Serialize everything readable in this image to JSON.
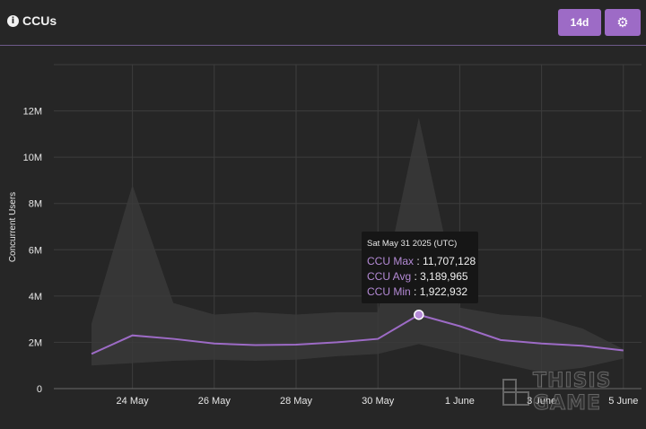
{
  "header": {
    "title": "CCUs",
    "info_icon": "info-icon",
    "range_label": "14d",
    "settings_icon": "gear-icon",
    "accent_color": "#9d6bc6"
  },
  "chart_data": {
    "type": "line",
    "ylabel": "Concurrent Users",
    "ylim": [
      0,
      14000000
    ],
    "y_ticks": [
      "0",
      "2M",
      "4M",
      "6M",
      "8M",
      "10M",
      "12M"
    ],
    "x_ticks": [
      "24 May",
      "26 May",
      "28 May",
      "30 May",
      "1 June",
      "3 June",
      "5 June"
    ],
    "x": [
      "2025-05-23",
      "2025-05-24",
      "2025-05-25",
      "2025-05-26",
      "2025-05-27",
      "2025-05-28",
      "2025-05-29",
      "2025-05-30",
      "2025-05-31",
      "2025-06-01",
      "2025-06-02",
      "2025-06-03",
      "2025-06-04",
      "2025-06-05"
    ],
    "series": [
      {
        "name": "CCU Max",
        "values": [
          2800000,
          8800000,
          3700000,
          3200000,
          3300000,
          3200000,
          3300000,
          3300000,
          11707128,
          3500000,
          3200000,
          3100000,
          2600000,
          1700000
        ],
        "color": "#4a4a4a"
      },
      {
        "name": "CCU Avg",
        "values": [
          1500000,
          2300000,
          2150000,
          1950000,
          1880000,
          1900000,
          2000000,
          2150000,
          3189965,
          2700000,
          2100000,
          1950000,
          1850000,
          1650000
        ],
        "color": "#9d6bc6"
      },
      {
        "name": "CCU Min",
        "values": [
          1000000,
          1100000,
          1200000,
          1250000,
          1200000,
          1250000,
          1400000,
          1500000,
          1922932,
          1500000,
          1100000,
          700000,
          900000,
          1300000
        ],
        "color": "#3a3a3a"
      }
    ],
    "grid": true
  },
  "tooltip": {
    "date": "Sat May 31 2025 (UTC)",
    "rows": [
      {
        "key": "CCU Max",
        "value": "11,707,128"
      },
      {
        "key": "CCU Avg",
        "value": "3,189,965"
      },
      {
        "key": "CCU Min",
        "value": "1,922,932"
      }
    ]
  },
  "watermark": {
    "line1": "THISIS",
    "line2": "GAME"
  }
}
